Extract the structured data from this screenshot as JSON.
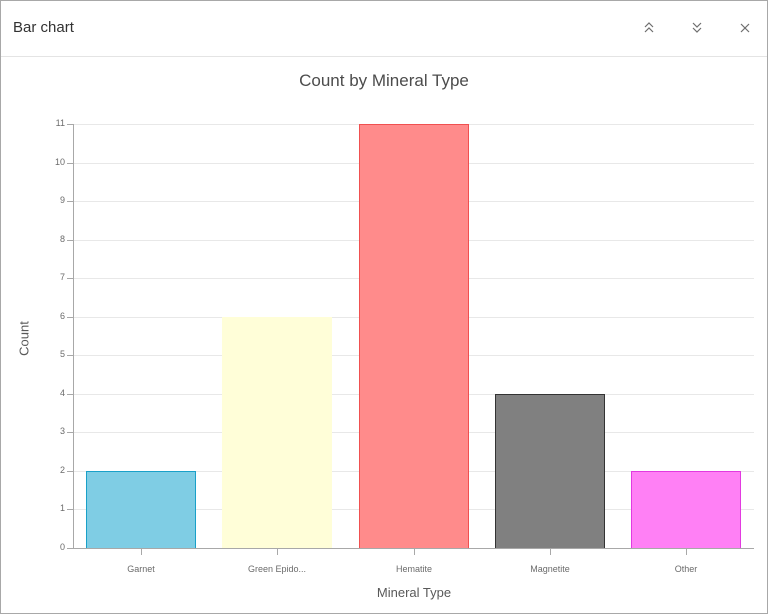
{
  "window": {
    "title": "Bar chart",
    "buttons": {
      "collapse_up": "chevron-double-up",
      "collapse_down": "chevron-double-down",
      "close": "close"
    }
  },
  "chart_data": {
    "type": "bar",
    "title": "Count by Mineral Type",
    "xlabel": "Mineral Type",
    "ylabel": "Count",
    "ylim": [
      0,
      11
    ],
    "yticks": [
      "0",
      "1",
      "2",
      "3",
      "4",
      "5",
      "6",
      "7",
      "8",
      "9",
      "10",
      "11"
    ],
    "grid": true,
    "categories": [
      "Garnet",
      "Green Epido...",
      "Hematite",
      "Magnetite",
      "Other"
    ],
    "values": [
      2,
      6,
      11,
      4,
      2
    ],
    "colors": [
      {
        "fill": "#7fcde4",
        "stroke": "#1aa0c8"
      },
      {
        "fill": "#fffed8",
        "stroke": "#fffed8"
      },
      {
        "fill": "#ff8b8b",
        "stroke": "#f05050"
      },
      {
        "fill": "#808080",
        "stroke": "#333333"
      },
      {
        "fill": "#ff80f5",
        "stroke": "#e23ae0"
      }
    ]
  }
}
